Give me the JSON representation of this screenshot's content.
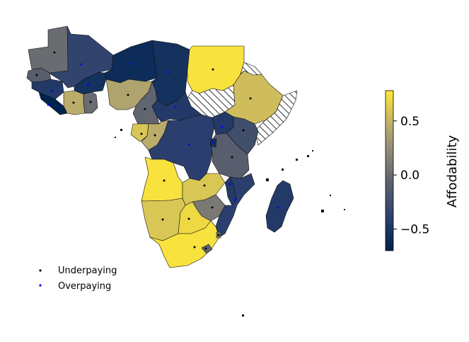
{
  "colorbar": {
    "label": "Affodability",
    "min": -0.7,
    "max": 0.78,
    "ticks": [
      {
        "value": 0.5,
        "label": "0.5"
      },
      {
        "value": 0.0,
        "label": "0.0"
      },
      {
        "value": -0.5,
        "label": "−0.5"
      }
    ],
    "colormap": "cividis"
  },
  "legend": {
    "placement": "lower-left",
    "items": [
      {
        "label": "Underpaying",
        "color": "#000000"
      },
      {
        "label": "Overpaying",
        "color": "#0000ff"
      }
    ]
  },
  "no_data_pattern": "diagonal-hatch",
  "regions": [
    {
      "name": "Mauritania",
      "value": 0.0,
      "status": "under"
    },
    {
      "name": "Mali",
      "value": -0.35,
      "status": "over"
    },
    {
      "name": "Niger",
      "value": -0.6,
      "status": "over"
    },
    {
      "name": "Chad",
      "value": -0.55,
      "status": "over"
    },
    {
      "name": "Sudan",
      "value": 0.75,
      "status": "under"
    },
    {
      "name": "Eritrea",
      "value": null,
      "status": "none"
    },
    {
      "name": "South Sudan",
      "value": null,
      "status": "none"
    },
    {
      "name": "Somalia",
      "value": null,
      "status": "none"
    },
    {
      "name": "Ethiopia",
      "value": 0.55,
      "status": "under"
    },
    {
      "name": "Senegal",
      "value": -0.1,
      "status": "under"
    },
    {
      "name": "Guinea",
      "value": -0.45,
      "status": "over"
    },
    {
      "name": "Sierra Leone",
      "value": -0.7,
      "status": "over"
    },
    {
      "name": "Burkina Faso",
      "value": -0.55,
      "status": "over"
    },
    {
      "name": "Ghana",
      "value": 0.0,
      "status": "under"
    },
    {
      "name": "Cote d'Ivoire",
      "value": 0.45,
      "status": "under"
    },
    {
      "name": "Nigeria",
      "value": 0.4,
      "status": "under"
    },
    {
      "name": "Cameroon",
      "value": -0.05,
      "status": "under"
    },
    {
      "name": "Central African Republic",
      "value": -0.45,
      "status": "over"
    },
    {
      "name": "Gabon",
      "value": 0.6,
      "status": "under"
    },
    {
      "name": "Congo",
      "value": 0.45,
      "status": "under"
    },
    {
      "name": "DR Congo",
      "value": -0.4,
      "status": "over"
    },
    {
      "name": "Uganda",
      "value": -0.45,
      "status": "over"
    },
    {
      "name": "Kenya",
      "value": -0.25,
      "status": "under"
    },
    {
      "name": "Tanzania",
      "value": -0.1,
      "status": "under"
    },
    {
      "name": "Rwanda",
      "value": -0.55,
      "status": "over"
    },
    {
      "name": "Angola",
      "value": 0.75,
      "status": "under"
    },
    {
      "name": "Zambia",
      "value": 0.6,
      "status": "under"
    },
    {
      "name": "Malawi",
      "value": -0.45,
      "status": "over"
    },
    {
      "name": "Mozambique",
      "value": -0.4,
      "status": "over"
    },
    {
      "name": "Zimbabwe",
      "value": 0.1,
      "status": "under"
    },
    {
      "name": "Namibia",
      "value": 0.6,
      "status": "under"
    },
    {
      "name": "Botswana",
      "value": 0.7,
      "status": "under"
    },
    {
      "name": "South Africa",
      "value": 0.75,
      "status": "under"
    },
    {
      "name": "Lesotho",
      "value": -0.05,
      "status": "under"
    },
    {
      "name": "Eswatini",
      "value": 0.1,
      "status": "under"
    },
    {
      "name": "Madagascar",
      "value": -0.45,
      "status": "over"
    }
  ]
}
